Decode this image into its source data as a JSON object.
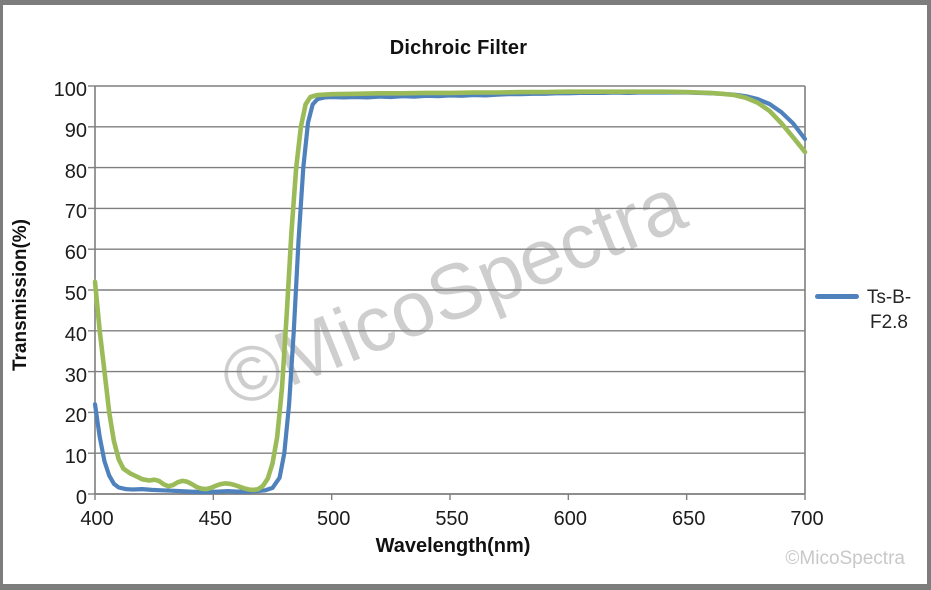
{
  "chart_data": {
    "type": "line",
    "title": "Dichroic Filter",
    "xlabel": "Wavelength(nm)",
    "ylabel": "Transmission(%)",
    "xlim": [
      400,
      700
    ],
    "ylim": [
      0,
      100
    ],
    "x_ticks": [
      400,
      450,
      500,
      550,
      600,
      650,
      700
    ],
    "y_ticks": [
      0,
      10,
      20,
      30,
      40,
      50,
      60,
      70,
      80,
      90,
      100
    ],
    "grid": "horizontal gridlines on",
    "legend_position": "right",
    "axis_color": "#7f7f7f",
    "series": [
      {
        "name": "Ts-B-F2.8",
        "color": "#4F81BD",
        "stroke_width": 4.2,
        "in_legend": true,
        "points": [
          [
            400,
            22
          ],
          [
            402,
            14
          ],
          [
            404,
            8
          ],
          [
            406,
            4.5
          ],
          [
            408,
            2.5
          ],
          [
            410,
            1.6
          ],
          [
            413,
            1.2
          ],
          [
            416,
            1.1
          ],
          [
            420,
            1.2
          ],
          [
            424,
            1.0
          ],
          [
            428,
            0.9
          ],
          [
            432,
            0.8
          ],
          [
            436,
            0.7
          ],
          [
            440,
            0.6
          ],
          [
            444,
            0.5
          ],
          [
            448,
            0.5
          ],
          [
            452,
            0.6
          ],
          [
            456,
            0.7
          ],
          [
            460,
            0.6
          ],
          [
            464,
            0.6
          ],
          [
            468,
            0.7
          ],
          [
            472,
            0.9
          ],
          [
            475,
            1.5
          ],
          [
            478,
            4
          ],
          [
            480,
            10
          ],
          [
            482,
            22
          ],
          [
            484,
            40
          ],
          [
            486,
            62
          ],
          [
            488,
            80
          ],
          [
            490,
            91
          ],
          [
            492,
            95.5
          ],
          [
            494,
            96.8
          ],
          [
            497,
            97.2
          ],
          [
            500,
            97.3
          ],
          [
            505,
            97.2
          ],
          [
            510,
            97.3
          ],
          [
            515,
            97.2
          ],
          [
            520,
            97.4
          ],
          [
            525,
            97.3
          ],
          [
            530,
            97.5
          ],
          [
            535,
            97.4
          ],
          [
            540,
            97.6
          ],
          [
            545,
            97.5
          ],
          [
            550,
            97.7
          ],
          [
            555,
            97.6
          ],
          [
            560,
            97.8
          ],
          [
            565,
            97.7
          ],
          [
            570,
            97.9
          ],
          [
            575,
            98.0
          ],
          [
            580,
            98.0
          ],
          [
            585,
            98.1
          ],
          [
            590,
            98.1
          ],
          [
            595,
            98.2
          ],
          [
            600,
            98.2
          ],
          [
            605,
            98.3
          ],
          [
            610,
            98.3
          ],
          [
            615,
            98.3
          ],
          [
            620,
            98.4
          ],
          [
            625,
            98.3
          ],
          [
            630,
            98.4
          ],
          [
            635,
            98.4
          ],
          [
            640,
            98.4
          ],
          [
            645,
            98.4
          ],
          [
            650,
            98.4
          ],
          [
            655,
            98.3
          ],
          [
            660,
            98.2
          ],
          [
            665,
            98.1
          ],
          [
            670,
            97.9
          ],
          [
            675,
            97.5
          ],
          [
            680,
            96.8
          ],
          [
            685,
            95.6
          ],
          [
            690,
            93.6
          ],
          [
            695,
            90.8
          ],
          [
            700,
            87
          ]
        ]
      },
      {
        "name": "",
        "color": "#9BBB59",
        "stroke_width": 4.6,
        "in_legend": false,
        "points": [
          [
            400,
            52
          ],
          [
            402,
            40
          ],
          [
            404,
            30
          ],
          [
            406,
            20
          ],
          [
            408,
            13
          ],
          [
            410,
            8.5
          ],
          [
            412,
            6.2
          ],
          [
            415,
            5.0
          ],
          [
            418,
            4.2
          ],
          [
            420,
            3.6
          ],
          [
            423,
            3.3
          ],
          [
            425,
            3.5
          ],
          [
            427,
            3.2
          ],
          [
            429,
            2.4
          ],
          [
            431,
            1.9
          ],
          [
            433,
            2.2
          ],
          [
            435,
            2.9
          ],
          [
            437,
            3.2
          ],
          [
            439,
            3.0
          ],
          [
            441,
            2.4
          ],
          [
            443,
            1.7
          ],
          [
            445,
            1.3
          ],
          [
            447,
            1.2
          ],
          [
            449,
            1.5
          ],
          [
            451,
            2.0
          ],
          [
            453,
            2.4
          ],
          [
            455,
            2.6
          ],
          [
            457,
            2.5
          ],
          [
            459,
            2.2
          ],
          [
            461,
            1.8
          ],
          [
            463,
            1.4
          ],
          [
            465,
            1.1
          ],
          [
            467,
            1.0
          ],
          [
            469,
            1.2
          ],
          [
            471,
            2.0
          ],
          [
            473,
            3.8
          ],
          [
            475,
            7.5
          ],
          [
            477,
            14
          ],
          [
            479,
            26
          ],
          [
            481,
            44
          ],
          [
            483,
            64
          ],
          [
            485,
            80
          ],
          [
            487,
            90
          ],
          [
            489,
            95.5
          ],
          [
            491,
            97.3
          ],
          [
            494,
            97.8
          ],
          [
            500,
            98.0
          ],
          [
            510,
            98.1
          ],
          [
            520,
            98.2
          ],
          [
            530,
            98.2
          ],
          [
            540,
            98.3
          ],
          [
            550,
            98.3
          ],
          [
            560,
            98.4
          ],
          [
            570,
            98.4
          ],
          [
            580,
            98.5
          ],
          [
            590,
            98.5
          ],
          [
            600,
            98.6
          ],
          [
            610,
            98.6
          ],
          [
            620,
            98.6
          ],
          [
            630,
            98.6
          ],
          [
            640,
            98.6
          ],
          [
            650,
            98.5
          ],
          [
            655,
            98.4
          ],
          [
            660,
            98.3
          ],
          [
            665,
            98.1
          ],
          [
            670,
            97.8
          ],
          [
            675,
            97.1
          ],
          [
            680,
            95.9
          ],
          [
            685,
            93.9
          ],
          [
            690,
            90.9
          ],
          [
            695,
            87.4
          ],
          [
            700,
            83.8
          ]
        ]
      }
    ]
  },
  "legend": {
    "label": "Ts-B-F2.8",
    "swatch_color": "#4F81BD"
  },
  "watermark": {
    "center": "©MicoSpectra",
    "corner": "©MicoSpectra"
  }
}
